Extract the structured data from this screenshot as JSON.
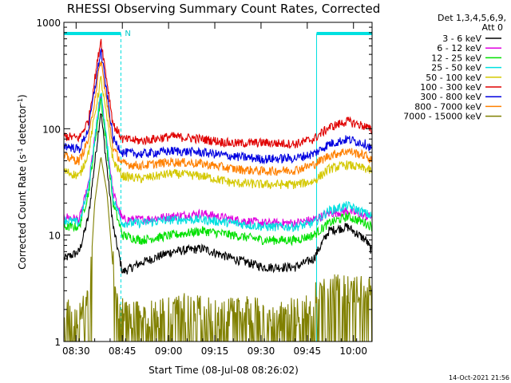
{
  "chart_data": {
    "type": "line",
    "title": "RHESSI Observing Summary Count Rates, Corrected",
    "xlabel": "Start Time (08-Jul-08 08:26:02)",
    "ylabel_main": "Corrected Count Rate (s",
    "ylabel_exp1": "-1",
    "ylabel_mid": " detector",
    "ylabel_exp2": "-1",
    "ylabel_end": ")",
    "y_scale": "log",
    "ylim": [
      1,
      1000
    ],
    "xlim_minutes": [
      0,
      100
    ],
    "x_ticks": [
      "08:30",
      "08:45",
      "09:00",
      "09:15",
      "09:30",
      "09:45",
      "10:00"
    ],
    "x_tick_minutes": [
      3.97,
      18.97,
      33.97,
      48.97,
      63.97,
      78.97,
      93.97
    ],
    "y_ticks": [
      "1",
      "10",
      "100",
      "1000"
    ],
    "y_tick_values": [
      1,
      10,
      100,
      1000
    ],
    "legend_header": [
      "Det 1,3,4,5,6,9,",
      "Att 0"
    ],
    "legend_position": "right",
    "flag_label": "N",
    "footer": "14-Oct-2021 21:56",
    "night_intervals_minutes": [
      [
        0,
        18.5
      ],
      [
        82,
        100
      ]
    ],
    "series": [
      {
        "name": "3 - 6 keV",
        "color": "#000000",
        "points": [
          [
            0,
            6
          ],
          [
            5,
            7
          ],
          [
            8,
            15
          ],
          [
            12,
            150
          ],
          [
            16,
            12
          ],
          [
            19,
            4.5
          ],
          [
            25,
            5.5
          ],
          [
            35,
            7
          ],
          [
            45,
            7.5
          ],
          [
            55,
            6
          ],
          [
            65,
            5
          ],
          [
            75,
            5
          ],
          [
            81,
            6
          ],
          [
            86,
            11
          ],
          [
            92,
            12
          ],
          [
            98,
            9
          ],
          [
            100,
            7
          ]
        ]
      },
      {
        "name": "6 - 12 keV",
        "color": "#e000e0",
        "points": [
          [
            0,
            15
          ],
          [
            5,
            14
          ],
          [
            8,
            30
          ],
          [
            12,
            210
          ],
          [
            16,
            25
          ],
          [
            19,
            14
          ],
          [
            25,
            14
          ],
          [
            35,
            15
          ],
          [
            45,
            16
          ],
          [
            55,
            14
          ],
          [
            65,
            13
          ],
          [
            75,
            13
          ],
          [
            81,
            14
          ],
          [
            86,
            16
          ],
          [
            92,
            17
          ],
          [
            98,
            15
          ],
          [
            100,
            15
          ]
        ]
      },
      {
        "name": "12 - 25 keV",
        "color": "#00e000",
        "points": [
          [
            0,
            12
          ],
          [
            5,
            12
          ],
          [
            8,
            25
          ],
          [
            12,
            200
          ],
          [
            16,
            20
          ],
          [
            19,
            10
          ],
          [
            25,
            9
          ],
          [
            35,
            10
          ],
          [
            45,
            11
          ],
          [
            55,
            10
          ],
          [
            65,
            9
          ],
          [
            75,
            9
          ],
          [
            81,
            10
          ],
          [
            86,
            13
          ],
          [
            92,
            15
          ],
          [
            98,
            13
          ],
          [
            100,
            12
          ]
        ]
      },
      {
        "name": "25 - 50 keV",
        "color": "#00e0e0",
        "points": [
          [
            0,
            14
          ],
          [
            5,
            13
          ],
          [
            8,
            28
          ],
          [
            12,
            230
          ],
          [
            16,
            22
          ],
          [
            19,
            13
          ],
          [
            25,
            13
          ],
          [
            35,
            14
          ],
          [
            45,
            14
          ],
          [
            55,
            13
          ],
          [
            65,
            12
          ],
          [
            75,
            12
          ],
          [
            81,
            13
          ],
          [
            86,
            17
          ],
          [
            92,
            19
          ],
          [
            98,
            16
          ],
          [
            100,
            15
          ]
        ]
      },
      {
        "name": "50 - 100 keV",
        "color": "#d4c800",
        "points": [
          [
            0,
            40
          ],
          [
            5,
            36
          ],
          [
            8,
            60
          ],
          [
            12,
            300
          ],
          [
            16,
            50
          ],
          [
            19,
            36
          ],
          [
            25,
            34
          ],
          [
            35,
            38
          ],
          [
            45,
            36
          ],
          [
            55,
            31
          ],
          [
            65,
            30
          ],
          [
            75,
            30
          ],
          [
            81,
            32
          ],
          [
            86,
            42
          ],
          [
            92,
            46
          ],
          [
            98,
            42
          ],
          [
            100,
            40
          ]
        ]
      },
      {
        "name": "100 - 300 keV",
        "color": "#e00000",
        "points": [
          [
            0,
            85
          ],
          [
            5,
            82
          ],
          [
            8,
            120
          ],
          [
            12,
            700
          ],
          [
            16,
            110
          ],
          [
            19,
            80
          ],
          [
            25,
            77
          ],
          [
            35,
            85
          ],
          [
            45,
            80
          ],
          [
            55,
            73
          ],
          [
            65,
            74
          ],
          [
            75,
            72
          ],
          [
            81,
            80
          ],
          [
            86,
            103
          ],
          [
            92,
            118
          ],
          [
            98,
            105
          ],
          [
            100,
            95
          ]
        ]
      },
      {
        "name": "300 - 800 keV",
        "color": "#0000e0",
        "points": [
          [
            0,
            70
          ],
          [
            5,
            64
          ],
          [
            8,
            100
          ],
          [
            12,
            550
          ],
          [
            16,
            80
          ],
          [
            19,
            60
          ],
          [
            25,
            58
          ],
          [
            35,
            62
          ],
          [
            45,
            60
          ],
          [
            55,
            55
          ],
          [
            65,
            52
          ],
          [
            75,
            53
          ],
          [
            81,
            58
          ],
          [
            86,
            72
          ],
          [
            92,
            80
          ],
          [
            98,
            72
          ],
          [
            100,
            65
          ]
        ]
      },
      {
        "name": "800 - 7000 keV",
        "color": "#ff8000",
        "points": [
          [
            0,
            55
          ],
          [
            5,
            50
          ],
          [
            8,
            80
          ],
          [
            12,
            450
          ],
          [
            16,
            65
          ],
          [
            19,
            47
          ],
          [
            25,
            45
          ],
          [
            35,
            49
          ],
          [
            45,
            47
          ],
          [
            55,
            42
          ],
          [
            65,
            40
          ],
          [
            75,
            41
          ],
          [
            81,
            46
          ],
          [
            86,
            56
          ],
          [
            92,
            62
          ],
          [
            98,
            56
          ],
          [
            100,
            50
          ]
        ]
      },
      {
        "name": "7000 - 15000 keV",
        "color": "#808000",
        "points": [
          [
            0,
            1.8
          ],
          [
            5,
            1.5
          ],
          [
            8,
            2
          ],
          [
            10,
            20
          ],
          [
            12,
            55
          ],
          [
            14,
            25
          ],
          [
            17,
            2
          ],
          [
            20,
            1.5
          ],
          [
            30,
            1.6
          ],
          [
            40,
            1.8
          ],
          [
            50,
            1.6
          ],
          [
            60,
            1.7
          ],
          [
            70,
            1.5
          ],
          [
            80,
            1.8
          ],
          [
            81,
            2.2
          ],
          [
            85,
            2.6
          ],
          [
            92,
            2.8
          ],
          [
            100,
            2.5
          ]
        ]
      }
    ]
  }
}
